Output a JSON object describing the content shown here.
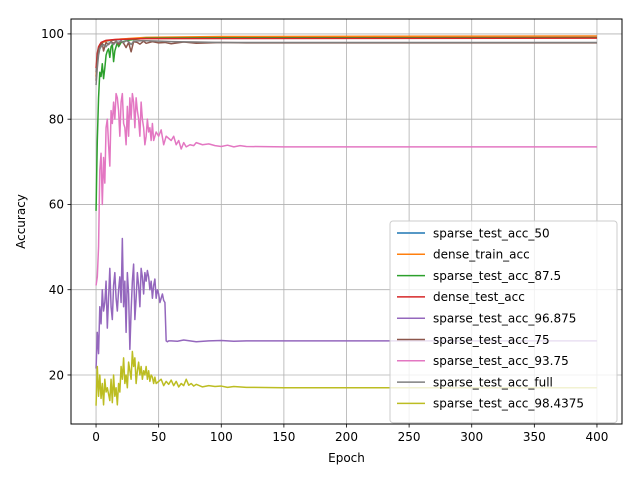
{
  "chart_data": {
    "type": "line",
    "xlabel": "Epoch",
    "ylabel": "Accuracy",
    "xlim": [
      -20,
      420
    ],
    "ylim": [
      8.5,
      103.5
    ],
    "xticks": [
      0,
      50,
      100,
      150,
      200,
      250,
      300,
      350,
      400
    ],
    "yticks": [
      20,
      40,
      60,
      80,
      100
    ],
    "grid": true,
    "legend_position": "lower right",
    "series": [
      {
        "name": "sparse_test_acc_50",
        "color": "#1f77b4",
        "x": [
          0,
          1,
          2,
          3,
          5,
          8,
          12,
          20,
          40,
          80,
          200,
          400
        ],
        "y": [
          91,
          95,
          96.5,
          97.5,
          98,
          98.3,
          98.5,
          98.7,
          99,
          99.1,
          99.2,
          99.2
        ]
      },
      {
        "name": "dense_train_acc",
        "color": "#ff7f0e",
        "x": [
          0,
          1,
          2,
          3,
          5,
          10,
          20,
          40,
          100,
          400
        ],
        "y": [
          90,
          94,
          96,
          97.5,
          98,
          98.5,
          98.8,
          99.2,
          99.4,
          99.5
        ]
      },
      {
        "name": "sparse_test_acc_87.5",
        "color": "#2ca02c",
        "x": [
          0,
          1,
          2,
          3,
          4,
          5,
          6,
          7,
          8,
          9,
          10,
          11,
          12,
          13,
          14,
          15,
          16,
          17,
          18,
          20,
          22,
          25,
          30,
          40,
          100,
          400
        ],
        "y": [
          58.5,
          75,
          85,
          91,
          90,
          93,
          89.5,
          92,
          95,
          96,
          96.5,
          94.5,
          97,
          97.5,
          93.5,
          96,
          97,
          98,
          97,
          98,
          98.2,
          98.5,
          98.7,
          99,
          99.1,
          99.1
        ]
      },
      {
        "name": "dense_test_acc",
        "color": "#d62728",
        "x": [
          0,
          1,
          2,
          4,
          8,
          15,
          40,
          400
        ],
        "y": [
          92,
          95.5,
          97,
          98,
          98.5,
          98.7,
          98.9,
          99
        ]
      },
      {
        "name": "sparse_test_acc_96.875",
        "color": "#9467bd",
        "x": [
          0,
          1,
          2,
          3,
          4,
          5,
          6,
          7,
          8,
          9,
          10,
          11,
          12,
          13,
          14,
          15,
          16,
          17,
          18,
          19,
          20,
          21,
          22,
          23,
          24,
          25,
          26,
          27,
          28,
          29,
          30,
          31,
          32,
          33,
          34,
          35,
          36,
          37,
          38,
          39,
          40,
          41,
          42,
          43,
          44,
          45,
          46,
          47,
          48,
          49,
          50,
          51,
          52,
          53,
          54,
          55,
          56,
          57,
          58,
          60,
          65,
          70,
          75,
          80,
          90,
          100,
          110,
          120,
          200,
          400
        ],
        "y": [
          21.5,
          30,
          25,
          36,
          32,
          40,
          35,
          37,
          42,
          31,
          38,
          45,
          36,
          33,
          41,
          44,
          38,
          35,
          40,
          43,
          37,
          52,
          36,
          42,
          30,
          44,
          39,
          26,
          35,
          42,
          46,
          33,
          38,
          44,
          41,
          36,
          45,
          43,
          39,
          44,
          42,
          44.5,
          43,
          40,
          42,
          38,
          41,
          42.5,
          38,
          40,
          39,
          37,
          38,
          39,
          37.5,
          37,
          28,
          27.8,
          28,
          28,
          27.9,
          28.2,
          28,
          27.8,
          28,
          28.1,
          27.9,
          28,
          28,
          28
        ]
      },
      {
        "name": "sparse_test_acc_75",
        "color": "#8c564b",
        "x": [
          0,
          1,
          2,
          3,
          4,
          5,
          6,
          8,
          10,
          12,
          14,
          16,
          18,
          20,
          22,
          24,
          26,
          28,
          30,
          33,
          35,
          38,
          40,
          45,
          50,
          55,
          60,
          70,
          80,
          100,
          120,
          200,
          400
        ],
        "y": [
          89,
          94,
          96.5,
          97,
          97.5,
          97.8,
          96,
          98,
          97.5,
          98.2,
          97.8,
          98.3,
          97.5,
          98.4,
          97.8,
          96.8,
          98,
          95.8,
          98.2,
          98,
          97.6,
          98.3,
          97.8,
          98.2,
          97.9,
          98,
          97.7,
          98.1,
          97.8,
          98,
          97.9,
          97.9,
          97.9
        ]
      },
      {
        "name": "sparse_test_acc_93.75",
        "color": "#e377c2",
        "x": [
          0,
          1,
          2,
          3,
          4,
          5,
          6,
          7,
          8,
          9,
          10,
          11,
          12,
          13,
          14,
          15,
          16,
          17,
          18,
          19,
          20,
          21,
          22,
          23,
          24,
          25,
          26,
          27,
          28,
          29,
          30,
          31,
          32,
          33,
          34,
          35,
          36,
          37,
          38,
          39,
          40,
          41,
          42,
          43,
          44,
          45,
          46,
          47,
          48,
          50,
          52,
          54,
          56,
          58,
          60,
          62,
          64,
          66,
          68,
          70,
          72,
          75,
          78,
          80,
          85,
          90,
          95,
          100,
          105,
          110,
          115,
          120,
          150,
          200,
          400
        ],
        "y": [
          41,
          43,
          50,
          68,
          72,
          60,
          71,
          65,
          78,
          80,
          74,
          69,
          82,
          79,
          84,
          80,
          86,
          85,
          82,
          76,
          84,
          86,
          79,
          78,
          74,
          83,
          76,
          85,
          80,
          86,
          84,
          78,
          85,
          82,
          80,
          76,
          84,
          80,
          78,
          74,
          76,
          80,
          77,
          78,
          75,
          79,
          75,
          76,
          77,
          76,
          77.5,
          74,
          76,
          75.5,
          75,
          76,
          74,
          75,
          73,
          74.5,
          73.5,
          74,
          73.8,
          74.5,
          74,
          74.2,
          73.8,
          73.6,
          73.9,
          73.5,
          73.8,
          73.6,
          73.5,
          73.5,
          73.5
        ]
      },
      {
        "name": "sparse_test_acc_full",
        "color": "#7f7f7f",
        "x": [
          0,
          1,
          2,
          3,
          4,
          6,
          8,
          10,
          12,
          14,
          16,
          18,
          20,
          22,
          24,
          26,
          28,
          30,
          35,
          40,
          50,
          60,
          80,
          100,
          200,
          400
        ],
        "y": [
          88,
          92,
          95,
          96.5,
          97,
          97.5,
          97,
          97.8,
          98,
          97.5,
          98.2,
          98,
          98.3,
          98,
          98.4,
          98.2,
          97.5,
          98.3,
          98.4,
          98.4,
          98.3,
          98.2,
          98.1,
          98,
          98,
          98
        ]
      },
      {
        "name": "sparse_test_acc_98.4375",
        "color": "#bcbd22",
        "x": [
          0,
          1,
          2,
          3,
          4,
          5,
          6,
          7,
          8,
          9,
          10,
          11,
          12,
          13,
          14,
          15,
          16,
          17,
          18,
          19,
          20,
          21,
          22,
          23,
          24,
          25,
          26,
          27,
          28,
          29,
          30,
          31,
          32,
          33,
          34,
          35,
          36,
          37,
          38,
          39,
          40,
          41,
          42,
          43,
          44,
          45,
          46,
          47,
          48,
          50,
          52,
          54,
          56,
          58,
          60,
          62,
          64,
          66,
          68,
          70,
          72,
          74,
          76,
          78,
          80,
          85,
          90,
          95,
          100,
          105,
          110,
          120,
          150,
          200,
          400
        ],
        "y": [
          12.8,
          22,
          15,
          20,
          14.5,
          18,
          13,
          19,
          16,
          17,
          15.5,
          14,
          19,
          13.5,
          20,
          15,
          17,
          13,
          18,
          16,
          22,
          19,
          24,
          18,
          20,
          17,
          23,
          21,
          19,
          25.5,
          22,
          24,
          18,
          21,
          23,
          20,
          22,
          19,
          21,
          20,
          22,
          19,
          21,
          18.5,
          20,
          19.5,
          18,
          19.5,
          18,
          18.5,
          19,
          17.5,
          18.5,
          17.8,
          18.8,
          17.5,
          18.5,
          17.2,
          18,
          17.5,
          19,
          17.6,
          18,
          17.4,
          17.8,
          17.2,
          17.5,
          17.3,
          17.4,
          17.1,
          17.3,
          17.1,
          17,
          17,
          17
        ]
      }
    ]
  }
}
